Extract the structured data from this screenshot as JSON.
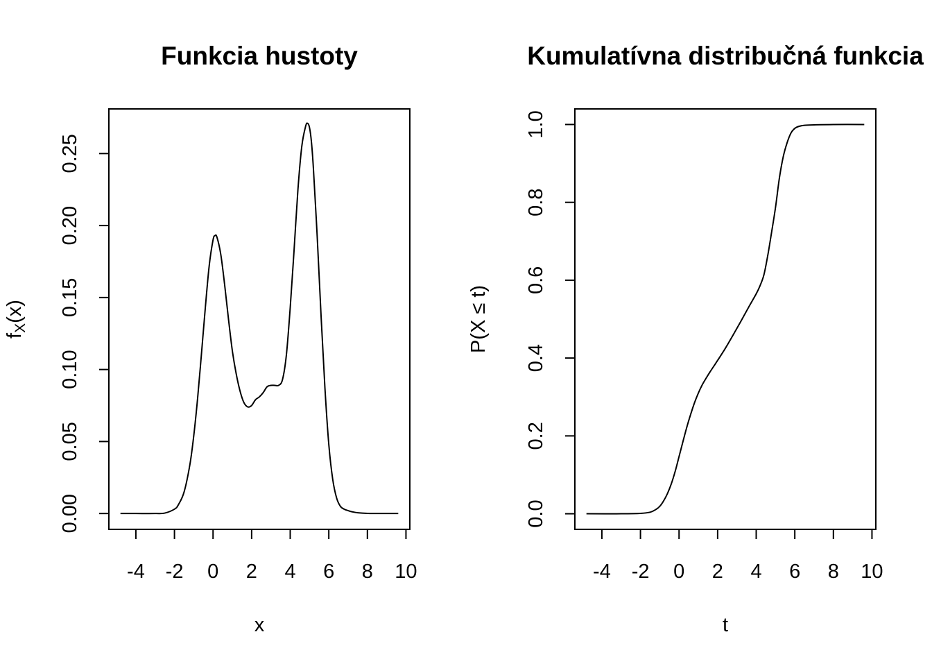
{
  "chart_data": [
    {
      "type": "line",
      "title": "Funkcia hustoty",
      "xlabel": "x",
      "ylabel_main": "f",
      "ylabel_sub": "X",
      "ylabel_tail": "(x)",
      "xlim": [
        -5.4,
        10.2
      ],
      "ylim": [
        -0.011,
        0.281
      ],
      "x_ticks": [
        -4,
        -2,
        0,
        2,
        4,
        6,
        8,
        10
      ],
      "x_tick_labels": [
        "-4",
        "-2",
        "0",
        "2",
        "4",
        "6",
        "8",
        "10"
      ],
      "y_ticks": [
        0,
        0.05,
        0.1,
        0.15,
        0.2,
        0.25
      ],
      "y_tick_labels": [
        "0.00",
        "0.05",
        "0.10",
        "0.15",
        "0.20",
        "0.25"
      ],
      "grid": false,
      "x": [
        -4.8,
        -4,
        -3,
        -2.5,
        -2,
        -1.8,
        -1.5,
        -1.2,
        -1,
        -0.8,
        -0.6,
        -0.4,
        -0.2,
        0,
        0.1,
        0.2,
        0.4,
        0.6,
        0.8,
        1,
        1.2,
        1.4,
        1.6,
        1.8,
        2,
        2.2,
        2.4,
        2.6,
        2.8,
        3,
        3.2,
        3.4,
        3.6,
        3.8,
        4,
        4.2,
        4.4,
        4.6,
        4.8,
        4.9,
        5,
        5.1,
        5.2,
        5.4,
        5.6,
        5.8,
        6,
        6.2,
        6.4,
        6.6,
        6.8,
        7,
        7.2,
        7.5,
        8,
        9,
        9.6
      ],
      "y": [
        0,
        0,
        0,
        0.0003,
        0.003,
        0.006,
        0.015,
        0.034,
        0.054,
        0.08,
        0.111,
        0.143,
        0.172,
        0.19,
        0.193,
        0.192,
        0.18,
        0.159,
        0.135,
        0.113,
        0.097,
        0.085,
        0.077,
        0.074,
        0.075,
        0.079,
        0.081,
        0.084,
        0.088,
        0.089,
        0.089,
        0.089,
        0.093,
        0.11,
        0.143,
        0.183,
        0.225,
        0.255,
        0.269,
        0.271,
        0.268,
        0.258,
        0.24,
        0.192,
        0.137,
        0.087,
        0.048,
        0.024,
        0.011,
        0.005,
        0.003,
        0.002,
        0.0012,
        0.0005,
        0.0001,
        0,
        0
      ]
    },
    {
      "type": "line",
      "title": "Kumulatívna distribučná funkcia",
      "xlabel": "t",
      "ylabel": "P(X ≤ t)",
      "xlim": [
        -5.4,
        10.2
      ],
      "ylim": [
        -0.04,
        1.04
      ],
      "x_ticks": [
        -4,
        -2,
        0,
        2,
        4,
        6,
        8,
        10
      ],
      "x_tick_labels": [
        "-4",
        "-2",
        "0",
        "2",
        "4",
        "6",
        "8",
        "10"
      ],
      "y_ticks": [
        0,
        0.2,
        0.4,
        0.6,
        0.8,
        1
      ],
      "y_tick_labels": [
        "0.0",
        "0.2",
        "0.4",
        "0.6",
        "0.8",
        "1.0"
      ],
      "grid": false,
      "x": [
        -4.8,
        -3,
        -2,
        -1.5,
        -1.2,
        -1,
        -0.8,
        -0.6,
        -0.4,
        -0.2,
        0,
        0.2,
        0.4,
        0.6,
        0.8,
        1,
        1.2,
        1.4,
        1.6,
        1.8,
        2,
        2.4,
        2.8,
        3.2,
        3.6,
        4,
        4.2,
        4.4,
        4.6,
        4.8,
        5,
        5.2,
        5.4,
        5.6,
        5.8,
        6,
        6.2,
        6.5,
        7,
        8,
        9.6
      ],
      "y": [
        0,
        0,
        0.001,
        0.004,
        0.011,
        0.019,
        0.033,
        0.052,
        0.077,
        0.109,
        0.147,
        0.185,
        0.222,
        0.255,
        0.285,
        0.31,
        0.331,
        0.348,
        0.364,
        0.379,
        0.394,
        0.425,
        0.459,
        0.494,
        0.53,
        0.565,
        0.586,
        0.614,
        0.664,
        0.724,
        0.787,
        0.862,
        0.917,
        0.953,
        0.978,
        0.99,
        0.995,
        0.998,
        0.999,
        1,
        1
      ]
    }
  ]
}
